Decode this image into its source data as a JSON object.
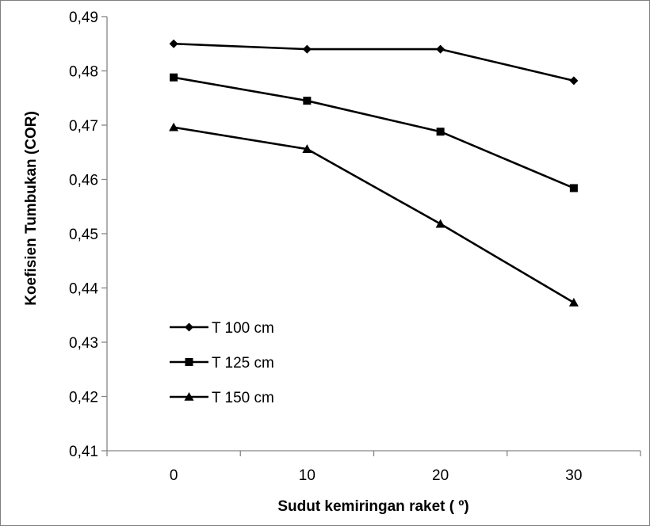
{
  "chart_data": {
    "type": "line",
    "title": "",
    "xlabel": "Sudut kemiringan raket ( º)",
    "ylabel": "Koefisien Tumbukan (COR)",
    "x": [
      0,
      10,
      20,
      30
    ],
    "x_tick_labels": [
      "0",
      "10",
      "20",
      "30"
    ],
    "ylim": [
      0.41,
      0.49
    ],
    "y_ticks": [
      0.41,
      0.42,
      0.43,
      0.44,
      0.45,
      0.46,
      0.47,
      0.48,
      0.49
    ],
    "y_tick_labels": [
      "0,41",
      "0,42",
      "0,43",
      "0,44",
      "0,45",
      "0,46",
      "0,47",
      "0,48",
      "0,49"
    ],
    "grid": false,
    "legend_position": "bottom-left",
    "series": [
      {
        "name": "T  100 cm",
        "marker": "diamond",
        "color": "#000000",
        "values": [
          0.485,
          0.484,
          0.484,
          0.4782
        ]
      },
      {
        "name": "T  125 cm",
        "marker": "square",
        "color": "#000000",
        "values": [
          0.4788,
          0.4745,
          0.4688,
          0.4584
        ]
      },
      {
        "name": "T  150 cm",
        "marker": "triangle",
        "color": "#000000",
        "values": [
          0.4696,
          0.4656,
          0.4518,
          0.4373
        ]
      }
    ]
  }
}
